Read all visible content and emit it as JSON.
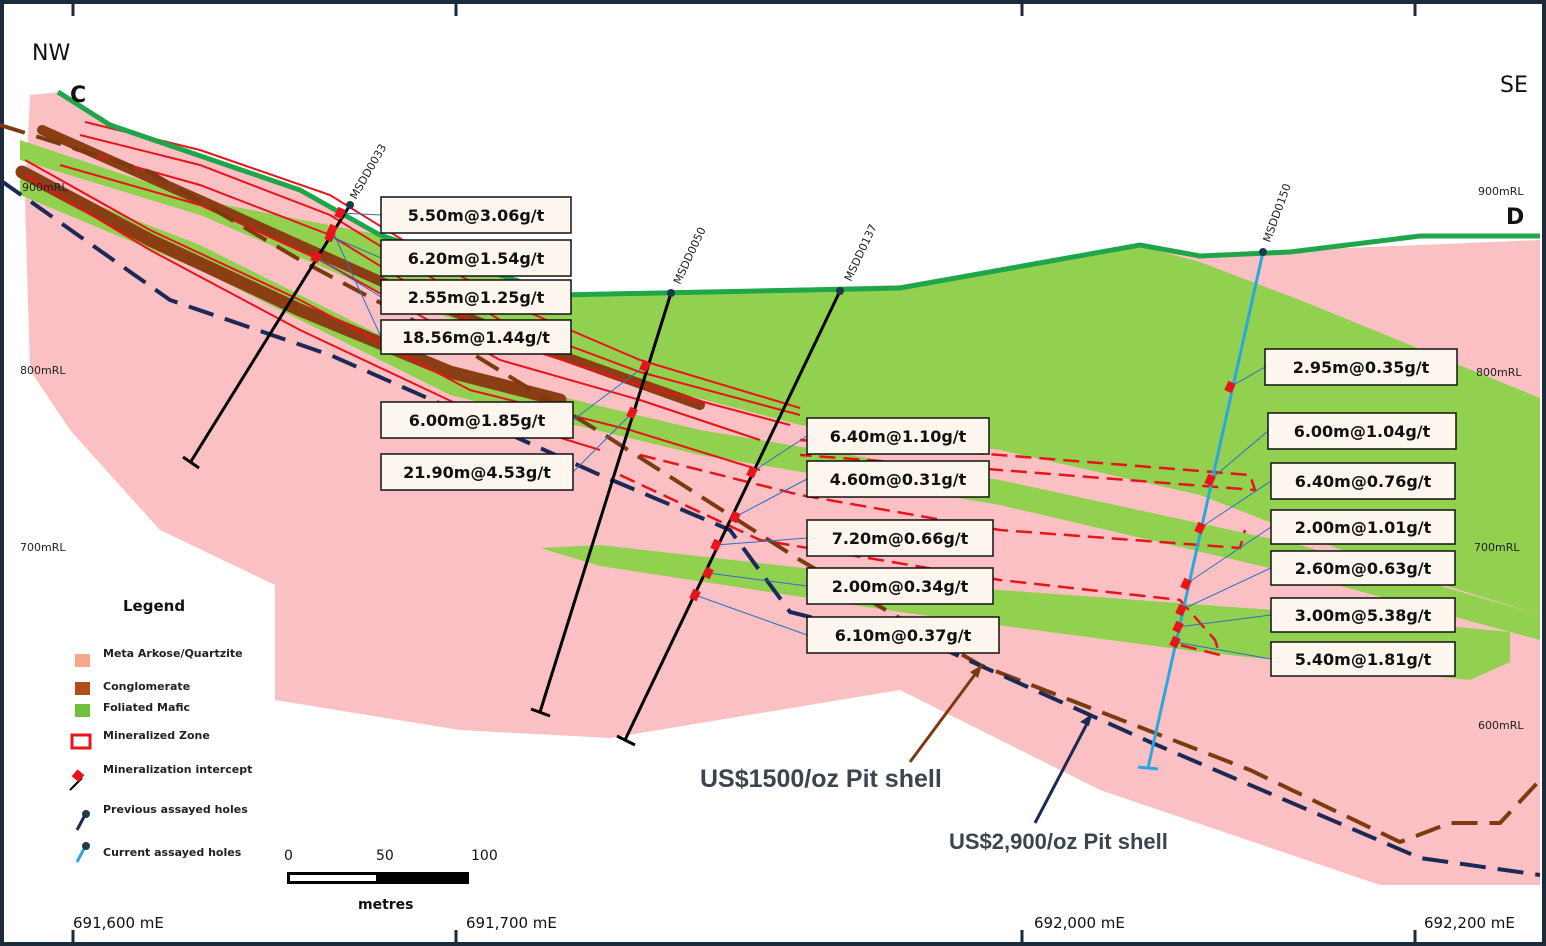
{
  "orientation": {
    "left": "NW",
    "right": "SE"
  },
  "section": {
    "start": "C",
    "end": "D"
  },
  "elevation_labels_left": [
    "900mRL",
    "800mRL",
    "700mRL"
  ],
  "elevation_labels_right": [
    "900mRL",
    "800mRL",
    "700mRL",
    "600mRL"
  ],
  "easting_labels": [
    "691,600 mE",
    "691,700 mE",
    "692,000 mE",
    "692,200 mE"
  ],
  "holes": [
    "MSDD0033",
    "MSDD0050",
    "MSDD0137",
    "MSDD0150"
  ],
  "intercepts": [
    "5.50m@3.06g/t",
    "6.20m@1.54g/t",
    "2.55m@1.25g/t",
    "18.56m@1.44g/t",
    "6.00m@1.85g/t",
    "21.90m@4.53g/t",
    "6.40m@1.10g/t",
    "4.60m@0.31g/t",
    "7.20m@0.66g/t",
    "2.00m@0.34g/t",
    "6.10m@0.37g/t",
    "2.95m@0.35g/t",
    "6.00m@1.04g/t",
    "6.40m@0.76g/t",
    "2.00m@1.01g/t",
    "2.60m@0.63g/t",
    "3.00m@5.38g/t",
    "5.40m@1.81g/t"
  ],
  "legend": {
    "title": "Legend",
    "items": [
      "Meta Arkose/Quartzite",
      "Conglomerate",
      "Foliated Mafic",
      "Mineralized Zone",
      "Mineralization intercept",
      "Previous assayed holes",
      "Current assayed holes"
    ]
  },
  "scale_bar": {
    "ticks": [
      "0",
      "50",
      "100"
    ],
    "unit": "metres"
  },
  "annotations": [
    "US$1500/oz Pit shell",
    "US$2,900/oz Pit shell"
  ]
}
